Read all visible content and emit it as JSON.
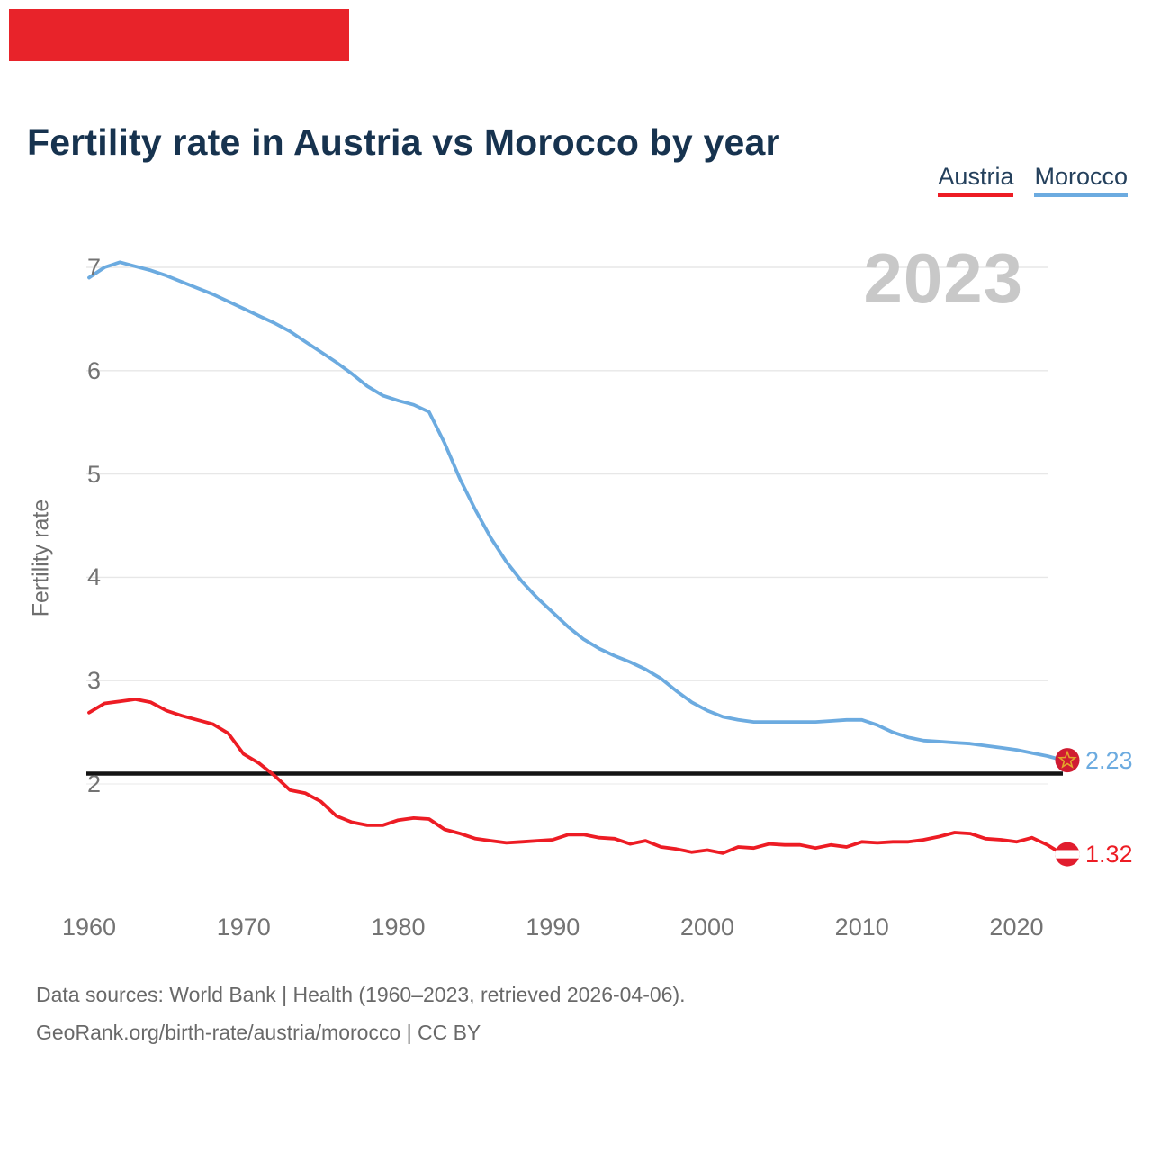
{
  "page": {
    "background": "#ffffff"
  },
  "brand_bar": {
    "color": "#e8232a"
  },
  "header": {
    "title": "Fertility rate in Austria vs Morocco by year",
    "title_color": "#17334f"
  },
  "legend": {
    "items": [
      {
        "label": "Austria",
        "color": "#ed1c24"
      },
      {
        "label": "Morocco",
        "color": "#6cabe0"
      }
    ],
    "text_color": "#24405c"
  },
  "watermark": {
    "text": "2023",
    "color": "#c8c8c8"
  },
  "axis": {
    "ylabel": "Fertility rate",
    "tick_color": "#737373",
    "grid_color": "#e7e7e7",
    "y_tick_labels": [
      "7",
      "6",
      "5",
      "4",
      "3",
      "2"
    ],
    "x_tick_labels": [
      "1960",
      "1970",
      "1980",
      "1990",
      "2000",
      "2010",
      "2020"
    ]
  },
  "chart_data": {
    "type": "line",
    "title": "Fertility rate in Austria vs Morocco by year",
    "xlabel": "",
    "ylabel": "Fertility rate",
    "x_start_year": 1960,
    "x_end_year": 2023,
    "x_ticks": [
      1960,
      1970,
      1980,
      1990,
      2000,
      2010,
      2020
    ],
    "y_ticks": [
      2,
      3,
      4,
      5,
      6,
      7
    ],
    "ylim": [
      1.2,
      7.15
    ],
    "grid": "horizontal",
    "legend_position": "top-right",
    "reference_line": {
      "value": 2.1,
      "color": "#141414",
      "meaning": "replacement-level fertility"
    },
    "series": [
      {
        "name": "Morocco",
        "color": "#6cabe0",
        "end_value": 2.23,
        "end_label": "2.23",
        "flag": "morocco",
        "values": [
          6.9,
          7.0,
          7.05,
          7.01,
          6.97,
          6.92,
          6.86,
          6.8,
          6.74,
          6.67,
          6.6,
          6.53,
          6.46,
          6.38,
          6.28,
          6.18,
          6.08,
          5.97,
          5.85,
          5.76,
          5.71,
          5.67,
          5.6,
          5.3,
          4.95,
          4.65,
          4.38,
          4.15,
          3.96,
          3.8,
          3.66,
          3.52,
          3.4,
          3.31,
          3.24,
          3.18,
          3.11,
          3.02,
          2.9,
          2.79,
          2.71,
          2.65,
          2.62,
          2.6,
          2.6,
          2.6,
          2.6,
          2.6,
          2.61,
          2.62,
          2.62,
          2.57,
          2.5,
          2.45,
          2.42,
          2.41,
          2.4,
          2.39,
          2.37,
          2.35,
          2.33,
          2.3,
          2.27,
          2.23
        ]
      },
      {
        "name": "Austria",
        "color": "#ed1c24",
        "end_value": 1.32,
        "end_label": "1.32",
        "flag": "austria",
        "values": [
          2.69,
          2.78,
          2.8,
          2.82,
          2.79,
          2.71,
          2.66,
          2.62,
          2.58,
          2.49,
          2.29,
          2.2,
          2.08,
          1.94,
          1.91,
          1.83,
          1.69,
          1.63,
          1.6,
          1.6,
          1.65,
          1.67,
          1.66,
          1.56,
          1.52,
          1.47,
          1.45,
          1.43,
          1.44,
          1.45,
          1.46,
          1.51,
          1.51,
          1.48,
          1.47,
          1.42,
          1.45,
          1.39,
          1.37,
          1.34,
          1.36,
          1.33,
          1.39,
          1.38,
          1.42,
          1.41,
          1.41,
          1.38,
          1.41,
          1.39,
          1.44,
          1.43,
          1.44,
          1.44,
          1.46,
          1.49,
          1.53,
          1.52,
          1.47,
          1.46,
          1.44,
          1.48,
          1.41,
          1.32
        ]
      }
    ]
  },
  "end_labels": [
    {
      "text": "2.23",
      "color": "#6cabe0"
    },
    {
      "text": "1.32",
      "color": "#ed1c24"
    }
  ],
  "flags": {
    "morocco": {
      "background": "#d01c32",
      "star": "#e2a62b"
    },
    "austria": {
      "background": "#e11d2e",
      "band": "#ffffff"
    }
  },
  "footer": {
    "line1": "Data sources: World Bank | Health (1960–2023, retrieved 2026-04-06).",
    "line2": "GeoRank.org/birth-rate/austria/morocco | CC BY",
    "color": "#696969"
  }
}
